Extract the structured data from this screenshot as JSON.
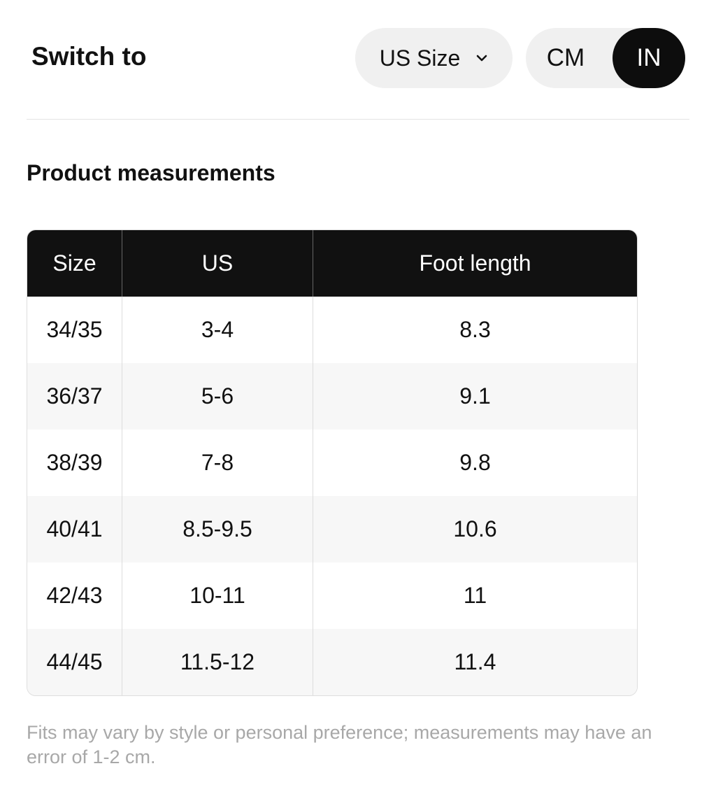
{
  "header": {
    "title": "Switch to",
    "size_selector": "US Size",
    "units": [
      "CM",
      "IN"
    ],
    "selected_unit": 1
  },
  "section_title": "Product measurements",
  "table": {
    "columns": [
      "Size",
      "US",
      "Foot length"
    ],
    "rows": [
      [
        "34/35",
        "3-4",
        "8.3"
      ],
      [
        "36/37",
        "5-6",
        "9.1"
      ],
      [
        "38/39",
        "7-8",
        "9.8"
      ],
      [
        "40/41",
        "8.5-9.5",
        "10.6"
      ],
      [
        "42/43",
        "10-11",
        "11"
      ],
      [
        "44/45",
        "11.5-12",
        "11.4"
      ]
    ]
  },
  "note": "Fits may vary by style or personal preference; measurements may have an error of 1-2 cm."
}
